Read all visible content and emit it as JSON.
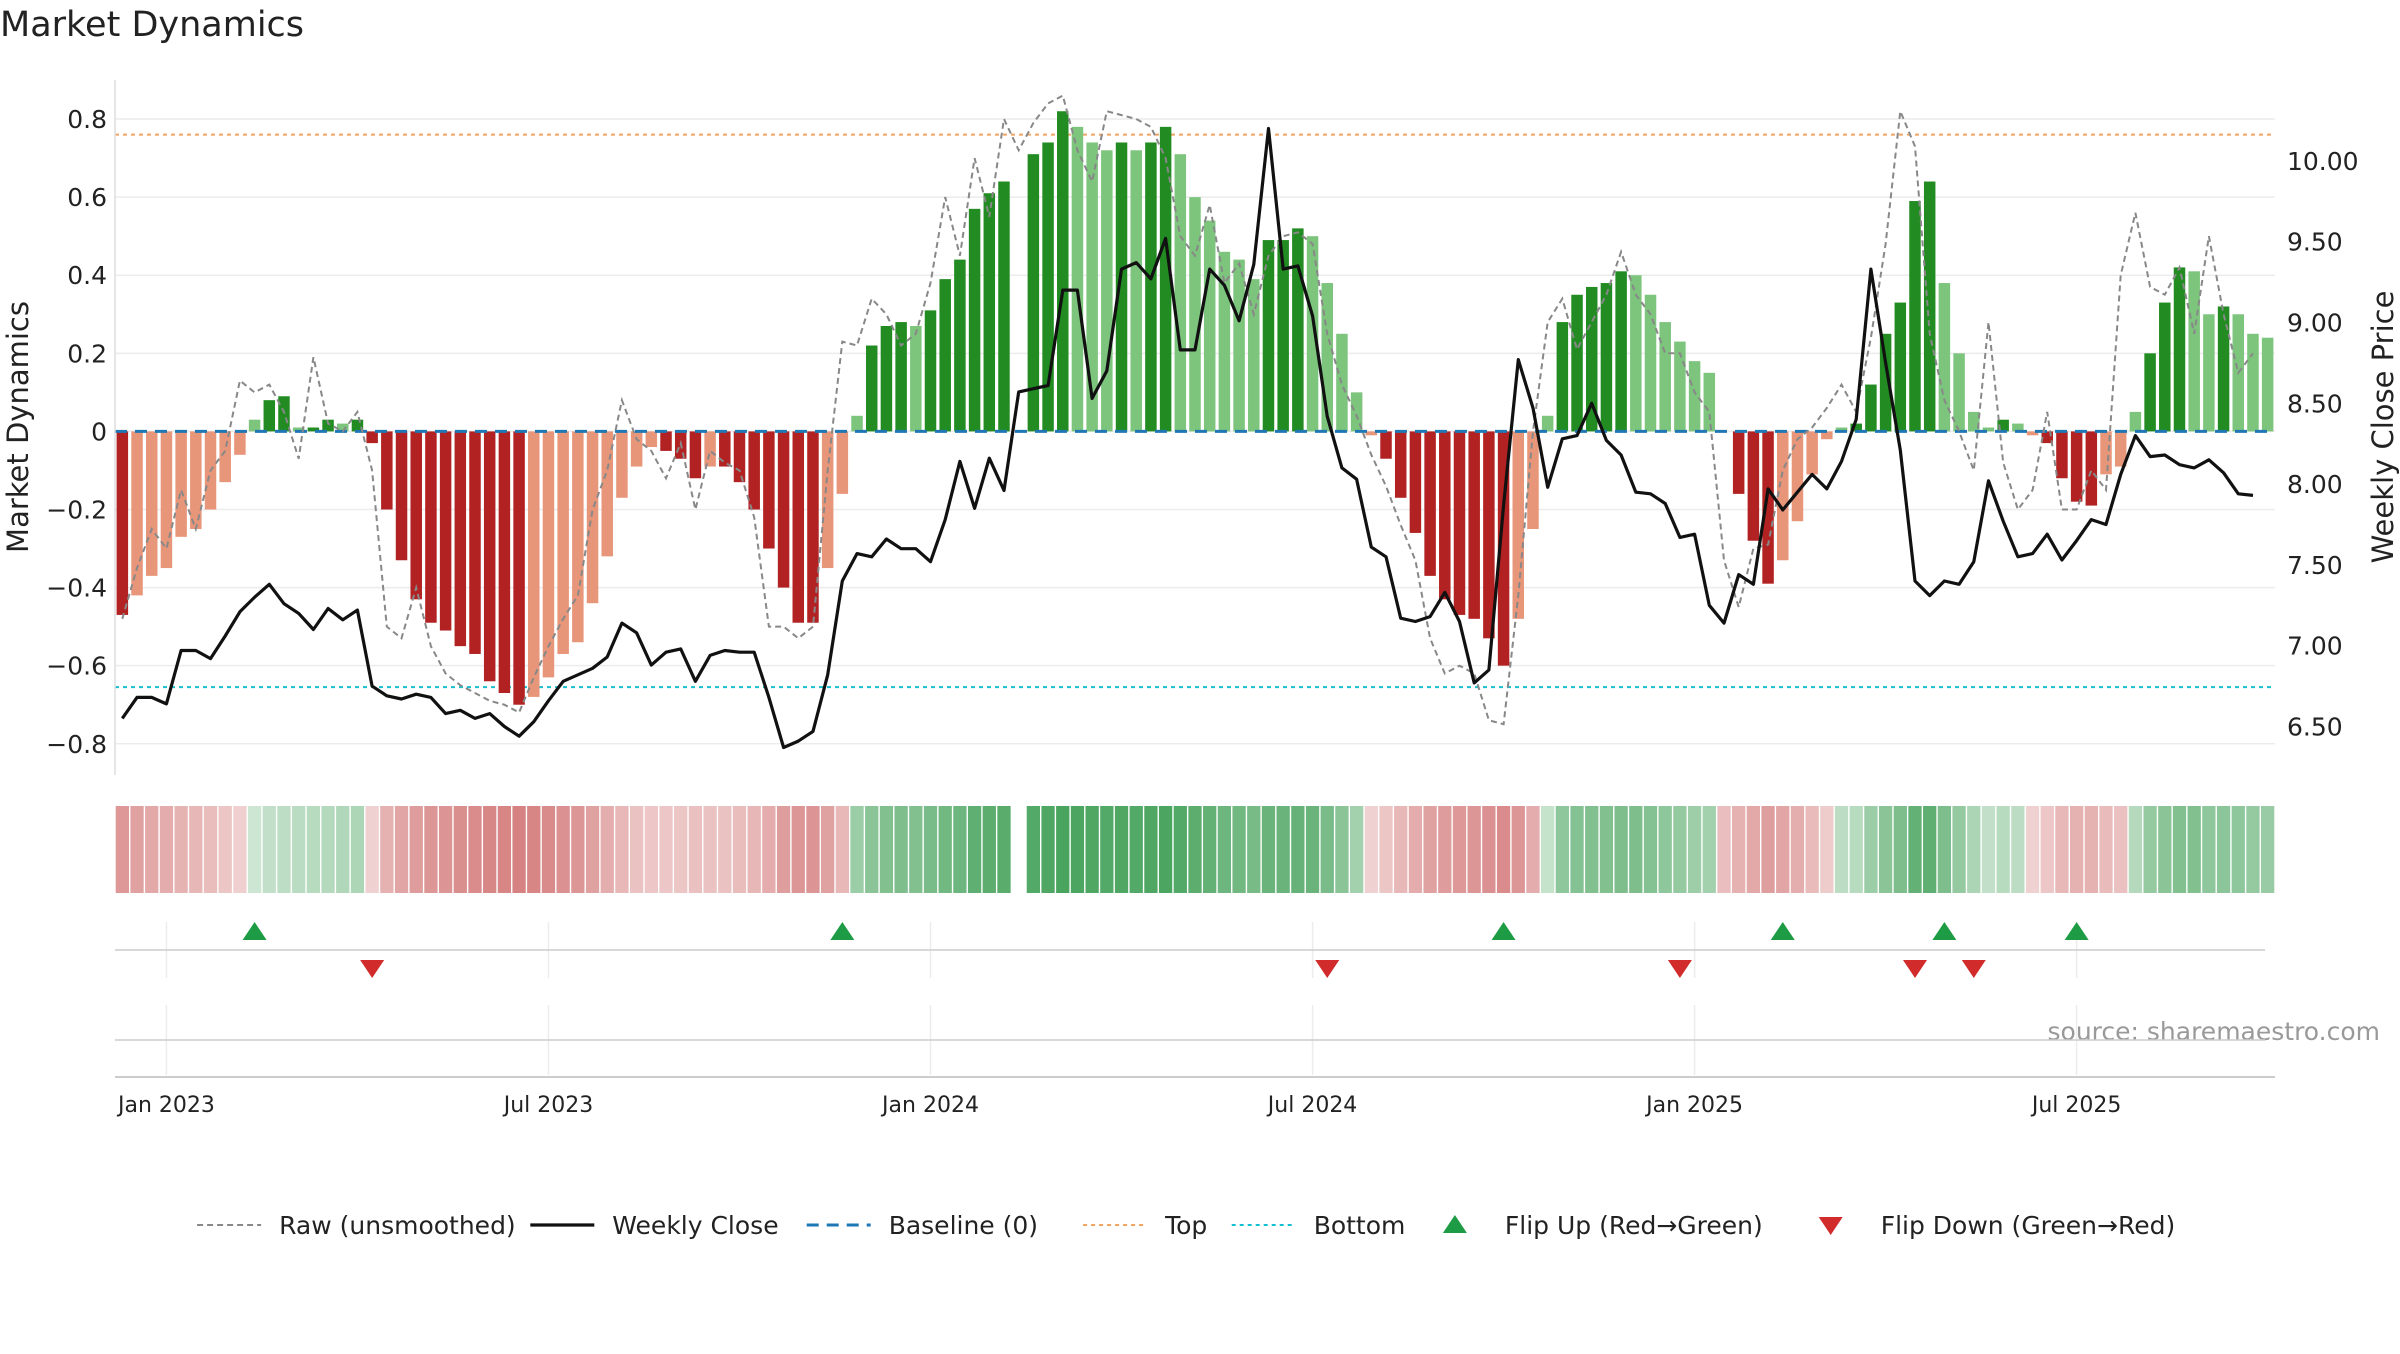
{
  "chart_data": {
    "type": "bar",
    "title": "Market Dynamics",
    "ylabel": "Market Dynamics",
    "y2label": "Weekly Close Price",
    "ylim": [
      -0.88,
      0.9
    ],
    "y2lim": [
      6.2,
      10.5
    ],
    "grid": true,
    "y_ticks": [
      {
        "v": 0.8,
        "label": "0.8"
      },
      {
        "v": 0.6,
        "label": "0.6"
      },
      {
        "v": 0.4,
        "label": "0.4"
      },
      {
        "v": 0.2,
        "label": "0.2"
      },
      {
        "v": 0,
        "label": "0"
      },
      {
        "v": -0.2,
        "label": "−0.2"
      },
      {
        "v": -0.4,
        "label": "−0.4"
      },
      {
        "v": -0.6,
        "label": "−0.6"
      },
      {
        "v": -0.8,
        "label": "−0.8"
      }
    ],
    "y2_ticks": [
      {
        "v": 10.0,
        "label": "10.00"
      },
      {
        "v": 9.5,
        "label": "9.50"
      },
      {
        "v": 9.0,
        "label": "9.00"
      },
      {
        "v": 8.5,
        "label": "8.50"
      },
      {
        "v": 8.0,
        "label": "8.00"
      },
      {
        "v": 7.5,
        "label": "7.50"
      },
      {
        "v": 7.0,
        "label": "7.00"
      },
      {
        "v": 6.5,
        "label": "6.50"
      }
    ],
    "x_ticks": [
      {
        "week": 3,
        "label": "Jan 2023"
      },
      {
        "week": 29,
        "label": "Jul 2023"
      },
      {
        "week": 55,
        "label": "Jan 2024"
      },
      {
        "week": 81,
        "label": "Jul 2024"
      },
      {
        "week": 107,
        "label": "Jan 2025"
      },
      {
        "week": 133,
        "label": "Jul 2025"
      }
    ],
    "top_level": 0.76,
    "bottom_level": -0.655,
    "colors": {
      "strong_up": "#228b22",
      "weak_up": "#7dc47d",
      "strong_down": "#b22222",
      "weak_down": "#e8967a",
      "raw": "#888888",
      "close": "#111111",
      "baseline": "#1f77b4",
      "top": "#f4a460",
      "bottom": "#17becf",
      "flip_up": "#1e9c45",
      "flip_down": "#d12b2b"
    },
    "bars": [
      -0.47,
      -0.42,
      -0.37,
      -0.35,
      -0.27,
      -0.25,
      -0.2,
      -0.13,
      -0.06,
      0.03,
      0.08,
      0.09,
      0.01,
      0.01,
      0.03,
      0.02,
      0.03,
      -0.03,
      -0.2,
      -0.33,
      -0.43,
      -0.49,
      -0.51,
      -0.55,
      -0.57,
      -0.64,
      -0.67,
      -0.7,
      -0.68,
      -0.63,
      -0.57,
      -0.54,
      -0.44,
      -0.32,
      -0.17,
      -0.09,
      -0.04,
      -0.05,
      -0.07,
      -0.12,
      -0.09,
      -0.09,
      -0.13,
      -0.2,
      -0.3,
      -0.4,
      -0.49,
      -0.49,
      -0.35,
      -0.16,
      0.04,
      0.22,
      0.27,
      0.28,
      0.27,
      0.31,
      0.39,
      0.44,
      0.57,
      0.61,
      0.64,
      0.0,
      0.71,
      0.74,
      0.82,
      0.78,
      0.74,
      0.72,
      0.74,
      0.72,
      0.74,
      0.78,
      0.71,
      0.6,
      0.54,
      0.46,
      0.44,
      0.39,
      0.49,
      0.49,
      0.52,
      0.5,
      0.38,
      0.25,
      0.1,
      -0.01,
      -0.07,
      -0.17,
      -0.26,
      -0.37,
      -0.43,
      -0.47,
      -0.48,
      -0.53,
      -0.6,
      -0.48,
      -0.25,
      0.04,
      0.28,
      0.35,
      0.37,
      0.38,
      0.41,
      0.4,
      0.35,
      0.28,
      0.23,
      0.18,
      0.15,
      0.0,
      -0.16,
      -0.28,
      -0.39,
      -0.33,
      -0.23,
      -0.11,
      -0.02,
      0.01,
      0.02,
      0.12,
      0.25,
      0.33,
      0.59,
      0.64,
      0.38,
      0.2,
      0.05,
      0.01,
      0.03,
      0.02,
      -0.01,
      -0.03,
      -0.12,
      -0.18,
      -0.19,
      -0.11,
      -0.09,
      0.05,
      0.2,
      0.33,
      0.42,
      0.41,
      0.3,
      0.32,
      0.3,
      0.25,
      0.24
    ],
    "raw": [
      -0.48,
      -0.35,
      -0.25,
      -0.3,
      -0.15,
      -0.25,
      -0.1,
      -0.05,
      0.13,
      0.1,
      0.12,
      0.05,
      -0.07,
      0.19,
      0.02,
      0.0,
      0.05,
      -0.1,
      -0.5,
      -0.53,
      -0.4,
      -0.55,
      -0.62,
      -0.65,
      -0.67,
      -0.69,
      -0.7,
      -0.72,
      -0.63,
      -0.55,
      -0.48,
      -0.42,
      -0.2,
      -0.1,
      0.08,
      -0.02,
      -0.05,
      -0.12,
      -0.03,
      -0.2,
      -0.05,
      -0.08,
      -0.1,
      -0.22,
      -0.5,
      -0.5,
      -0.53,
      -0.5,
      -0.1,
      0.23,
      0.22,
      0.34,
      0.3,
      0.22,
      0.25,
      0.38,
      0.6,
      0.45,
      0.7,
      0.55,
      0.8,
      0.72,
      0.79,
      0.84,
      0.86,
      0.72,
      0.64,
      0.82,
      0.81,
      0.8,
      0.78,
      0.7,
      0.5,
      0.45,
      0.58,
      0.38,
      0.43,
      0.3,
      0.45,
      0.5,
      0.51,
      0.48,
      0.25,
      0.12,
      0.04,
      -0.06,
      -0.14,
      -0.24,
      -0.33,
      -0.53,
      -0.62,
      -0.6,
      -0.62,
      -0.74,
      -0.75,
      -0.42,
      0.0,
      0.28,
      0.34,
      0.21,
      0.28,
      0.35,
      0.46,
      0.35,
      0.3,
      0.2,
      0.2,
      0.1,
      0.05,
      -0.33,
      -0.45,
      -0.3,
      -0.29,
      -0.1,
      -0.02,
      0.01,
      0.06,
      0.12,
      0.05,
      0.24,
      0.48,
      0.82,
      0.73,
      0.25,
      0.08,
      0.0,
      -0.1,
      0.28,
      -0.08,
      -0.2,
      -0.15,
      0.05,
      -0.2,
      -0.2,
      -0.1,
      -0.15,
      0.4,
      0.56,
      0.37,
      0.35,
      0.42,
      0.25,
      0.5,
      0.3,
      0.15,
      0.2
    ],
    "close": [
      6.55,
      6.68,
      6.68,
      6.64,
      6.97,
      6.97,
      6.92,
      7.06,
      7.21,
      7.3,
      7.38,
      7.26,
      7.2,
      7.1,
      7.23,
      7.16,
      7.22,
      6.75,
      6.69,
      6.67,
      6.7,
      6.68,
      6.58,
      6.6,
      6.55,
      6.58,
      6.5,
      6.44,
      6.53,
      6.66,
      6.78,
      6.82,
      6.86,
      6.93,
      7.14,
      7.08,
      6.88,
      6.96,
      6.98,
      6.78,
      6.94,
      6.97,
      6.96,
      6.96,
      6.68,
      6.37,
      6.41,
      6.47,
      6.82,
      7.4,
      7.57,
      7.55,
      7.66,
      7.6,
      7.6,
      7.52,
      7.78,
      8.14,
      7.85,
      8.16,
      7.96,
      8.57,
      8.59,
      8.61,
      9.2,
      9.2,
      8.53,
      8.7,
      9.33,
      9.37,
      9.27,
      9.52,
      8.83,
      8.83,
      9.33,
      9.23,
      9.01,
      9.36,
      10.2,
      9.33,
      9.35,
      9.04,
      8.42,
      8.1,
      8.03,
      7.61,
      7.55,
      7.17,
      7.15,
      7.18,
      7.33,
      7.15,
      6.77,
      6.85,
      7.87,
      8.77,
      8.47,
      7.98,
      8.28,
      8.3,
      8.5,
      8.27,
      8.18,
      7.95,
      7.94,
      7.88,
      7.67,
      7.69,
      7.25,
      7.14,
      7.44,
      7.38,
      7.97,
      7.84,
      7.95,
      8.06,
      7.97,
      8.14,
      8.4,
      9.33,
      8.75,
      8.21,
      7.4,
      7.31,
      7.4,
      7.38,
      7.52,
      8.02,
      7.77,
      7.55,
      7.57,
      7.69,
      7.53,
      7.65,
      7.78,
      7.75,
      8.06,
      8.3,
      8.17,
      8.18,
      8.12,
      8.1,
      8.15,
      8.07,
      7.94,
      7.93
    ],
    "regime_band": [
      -0.55,
      -0.48,
      -0.42,
      -0.4,
      -0.34,
      -0.32,
      -0.26,
      -0.2,
      -0.12,
      0.05,
      0.12,
      0.14,
      0.16,
      0.18,
      0.2,
      0.22,
      0.24,
      -0.1,
      -0.35,
      -0.45,
      -0.52,
      -0.56,
      -0.58,
      -0.62,
      -0.64,
      -0.68,
      -0.7,
      -0.72,
      -0.7,
      -0.65,
      -0.6,
      -0.56,
      -0.48,
      -0.38,
      -0.3,
      -0.22,
      -0.18,
      -0.18,
      -0.2,
      -0.24,
      -0.22,
      -0.22,
      -0.26,
      -0.32,
      -0.4,
      -0.5,
      -0.56,
      -0.58,
      -0.48,
      -0.3,
      0.35,
      0.45,
      0.5,
      0.52,
      0.5,
      0.55,
      0.6,
      0.62,
      0.7,
      0.72,
      0.74,
      0.0,
      0.78,
      0.8,
      0.84,
      0.82,
      0.8,
      0.78,
      0.8,
      0.78,
      0.8,
      0.82,
      0.78,
      0.72,
      0.68,
      0.62,
      0.6,
      0.56,
      0.64,
      0.64,
      0.66,
      0.64,
      0.55,
      0.45,
      0.3,
      -0.1,
      -0.2,
      -0.3,
      -0.4,
      -0.48,
      -0.52,
      -0.55,
      -0.56,
      -0.6,
      -0.64,
      -0.56,
      -0.4,
      0.1,
      0.42,
      0.48,
      0.5,
      0.5,
      0.52,
      0.52,
      0.48,
      0.42,
      0.38,
      0.34,
      0.3,
      -0.25,
      -0.35,
      -0.42,
      -0.5,
      -0.45,
      -0.38,
      -0.28,
      -0.15,
      0.15,
      0.18,
      0.35,
      0.45,
      0.52,
      0.68,
      0.7,
      0.52,
      0.38,
      0.25,
      0.12,
      0.18,
      0.15,
      -0.1,
      -0.18,
      -0.3,
      -0.36,
      -0.36,
      -0.28,
      -0.24,
      0.2,
      0.38,
      0.45,
      0.5,
      0.5,
      0.42,
      0.44,
      0.42,
      0.38,
      0.36
    ],
    "flips_up": [
      9,
      49,
      94,
      113,
      124,
      133
    ],
    "flips_down": [
      17,
      82,
      106,
      122,
      126
    ],
    "legend": [
      {
        "label": "Raw (unsmoothed)",
        "style": "dashed-gray"
      },
      {
        "label": "Weekly Close",
        "style": "solid-black"
      },
      {
        "label": "Baseline (0)",
        "style": "dashed-blue"
      },
      {
        "label": "Top",
        "style": "dotted-orange"
      },
      {
        "label": "Bottom",
        "style": "dotted-cyan"
      },
      {
        "label": "Flip Up (Red→Green)",
        "style": "triangle-up"
      },
      {
        "label": "Flip Down (Green→Red)",
        "style": "triangle-down"
      }
    ],
    "legend_position": "bottom-center",
    "source": "source: sharemaestro.com"
  }
}
